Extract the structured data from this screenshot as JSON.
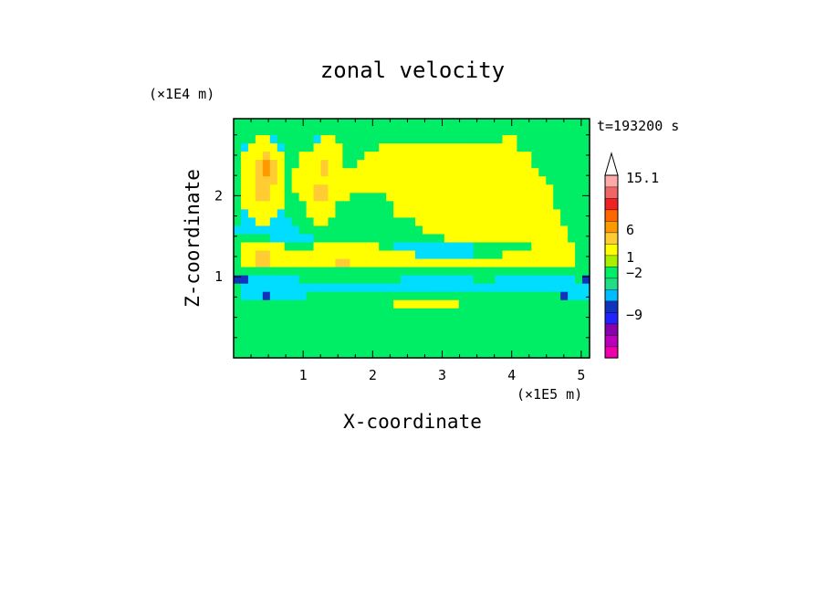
{
  "chart_data": {
    "type": "heatmap",
    "title": "zonal velocity",
    "xlabel": "X-coordinate",
    "ylabel": "Z-coordinate",
    "x_unit": "(×1E5 m)",
    "y_unit": "(×1E4 m)",
    "time_label": "t=193200 s",
    "xlim": [
      0,
      5.12
    ],
    "ylim": [
      0,
      2.95
    ],
    "xticks": [
      1,
      2,
      3,
      4,
      5
    ],
    "yticks": [
      1,
      2
    ],
    "x_tick_labels": [
      "1",
      "2",
      "3",
      "4",
      "5"
    ],
    "y_tick_labels": [
      "1",
      "2"
    ],
    "colorbar": {
      "labels": [
        "15.1",
        "6",
        "1",
        "−2",
        "−9"
      ],
      "label_values": [
        15.1,
        6,
        1,
        -2,
        -9
      ],
      "extend_top": true,
      "level_colors": [
        "#ee00aa",
        "#bb00bb",
        "#8800aa",
        "#2222ff",
        "#1133bb",
        "#00bbff",
        "#22dd88",
        "#00ee66",
        "#aaee00",
        "#ffff00",
        "#ffcc33",
        "#ff9900",
        "#ff6600",
        "#ee2222",
        "#ee6666",
        "#ffaaaa"
      ]
    },
    "field": {
      "grid": [
        49,
        29
      ],
      "classes": {
        "0": "#00ee66",
        "1": "#00ddff",
        "2": "#ffff00",
        "3": "#ffcc33",
        "4": "#ff9900",
        "5": "#1133bb",
        "6": "#ee2222",
        "7": "#aaee00"
      },
      "rows": [
        "0000000000000000000000000000000000000000000000000",
        "0000000000000000000000000000000000000000000000000",
        "0002210000012200000000000000000000000220000000000",
        "0122221000022220000022222222222222222220000000000",
        "0222322002222220002222222222222222222222200000000",
        "0223432002223220022222222222222222222222200000000",
        "0223432022223222222222222222222222222222220000000",
        "0223332022222222222222222222222222222222222000000",
        "0223322022233222222222222222222222222222222200000",
        "0223322002233222000002222222222222222222222200000",
        "0222222000222200000000222222222222222222222200000",
        "0122221000222200000000222222222222222222222220000",
        "0112211100022000000000000222222222222222222220000",
        "1111111110000000000000000022222222222222222222000",
        "0000011111100000000000000000022222222222222222000",
        "0222222000022222222200111111111110000000022222200",
        "0223322222222222222222222111111110000222222222200",
        "0223322222222233222222222222222222222222222222200",
        "0000000000000000000000000000000000000000000000000",
        "5511111110000000000000011111111110001111111111105",
        "0111111111111111111111111111111111111111111111111",
        "0111511111000000000000000000000000000000000005111",
        "0000000000000000000000222222222000000000000000000",
        "0000000000000000000000000000000000000000000000000",
        "0000000000000000000000000000000000000000000000000",
        "0000000000000000000000000000000000000000000000000",
        "0000000000000000000000000000000000000000000000000",
        "0000000000000000000000000000000000000000000000000",
        "0000000000000000000000000000000000000000000000000"
      ]
    }
  }
}
